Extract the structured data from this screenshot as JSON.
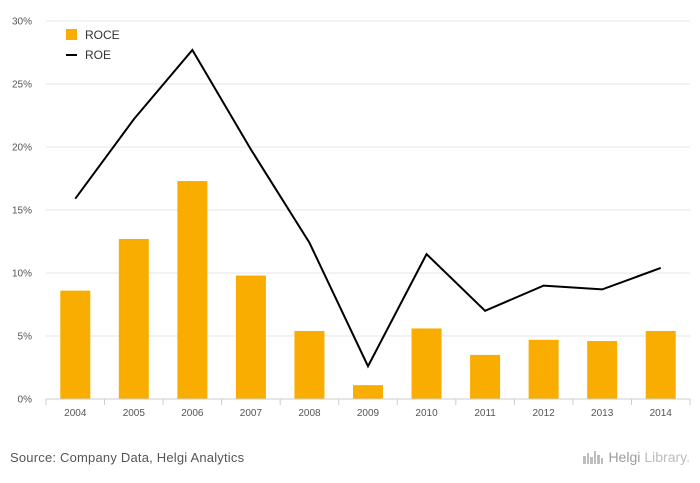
{
  "chart_data": {
    "type": "bar",
    "title": "",
    "xlabel": "",
    "ylabel": "",
    "categories": [
      "2004",
      "2005",
      "2006",
      "2007",
      "2008",
      "2009",
      "2010",
      "2011",
      "2012",
      "2013",
      "2014"
    ],
    "ylim": [
      0,
      30
    ],
    "y_ticks": [
      "0%",
      "5%",
      "10%",
      "15%",
      "20%",
      "25%",
      "30%"
    ],
    "grid": true,
    "legend_position": "top-left",
    "series": [
      {
        "name": "ROCE",
        "type": "bar",
        "color": "#F8AD00",
        "values": [
          8.6,
          12.7,
          17.3,
          9.8,
          5.4,
          1.1,
          5.6,
          3.5,
          4.7,
          4.6,
          5.4
        ]
      },
      {
        "name": "ROE",
        "type": "line",
        "color": "#000000",
        "values": [
          15.9,
          22.2,
          27.7,
          19.8,
          12.4,
          2.6,
          11.5,
          7.0,
          9.0,
          8.7,
          10.4
        ]
      }
    ]
  },
  "footer": {
    "source": "Source: Company Data, Helgi Analytics",
    "brand_part1": "Helgi",
    "brand_part2": "Library."
  },
  "icons": {
    "brand_logo": "city-skyline-icon"
  }
}
